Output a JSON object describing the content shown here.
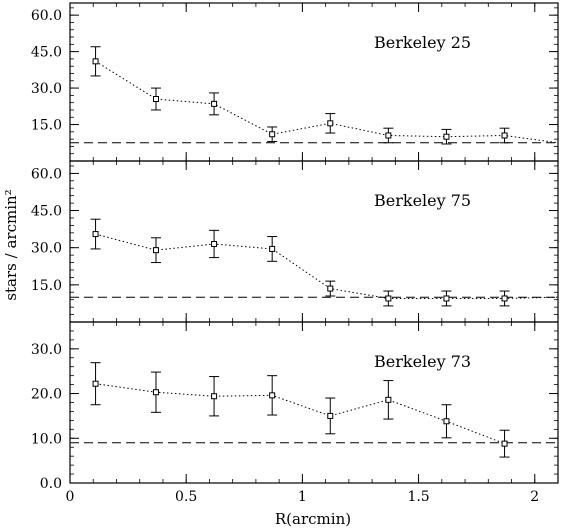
{
  "chart_data": {
    "type": "scatter",
    "shared_x": {
      "label": "R(arcmin)",
      "range": [
        0,
        2.1
      ],
      "ticks": [
        0,
        0.5,
        1,
        1.5,
        2
      ],
      "tick_labels": [
        "0",
        "0.5",
        "1",
        "1.5",
        "2"
      ]
    },
    "shared_y_label": "stars / arcmin²",
    "panels": [
      {
        "title": "Berkeley 25",
        "ylim": [
          0,
          65
        ],
        "yticks": [
          15,
          30,
          45,
          60
        ],
        "ytick_labels": [
          "15.0",
          "30.0",
          "45.0",
          "60.0"
        ],
        "background_level": 7.5,
        "x": [
          0.11,
          0.37,
          0.62,
          0.87,
          1.12,
          1.37,
          1.62,
          1.87
        ],
        "y": [
          41,
          25.5,
          23.5,
          11,
          15.5,
          10.5,
          10,
          10.5
        ],
        "err": [
          6,
          4.5,
          4.5,
          3,
          4,
          3,
          3,
          3
        ],
        "line_end": [
          2.1,
          7.5
        ]
      },
      {
        "title": "Berkeley 75",
        "ylim": [
          0,
          65
        ],
        "yticks": [
          15,
          30,
          45,
          60
        ],
        "ytick_labels": [
          "15.0",
          "30.0",
          "45.0",
          "60.0"
        ],
        "background_level": 10,
        "x": [
          0.11,
          0.37,
          0.62,
          0.87,
          1.12,
          1.37,
          1.62,
          1.87
        ],
        "y": [
          35.5,
          29,
          31.5,
          29.5,
          13.5,
          9.5,
          9.5,
          9.5
        ],
        "err": [
          6,
          5,
          5.5,
          5,
          3,
          3,
          3,
          3
        ],
        "line_end": [
          2.1,
          10
        ]
      },
      {
        "title": "Berkeley 73",
        "ylim": [
          0,
          36
        ],
        "yticks": [
          0,
          10,
          20,
          30
        ],
        "ytick_labels": [
          "0.0",
          "10.0",
          "20.0",
          "30.0"
        ],
        "background_level": 9,
        "x": [
          0.11,
          0.37,
          0.62,
          0.87,
          1.12,
          1.37,
          1.62,
          1.87
        ],
        "y": [
          22.2,
          20.3,
          19.4,
          19.6,
          15,
          18.6,
          13.8,
          8.8
        ],
        "err": [
          4.7,
          4.5,
          4.4,
          4.4,
          4,
          4.3,
          3.7,
          3
        ]
      }
    ]
  }
}
